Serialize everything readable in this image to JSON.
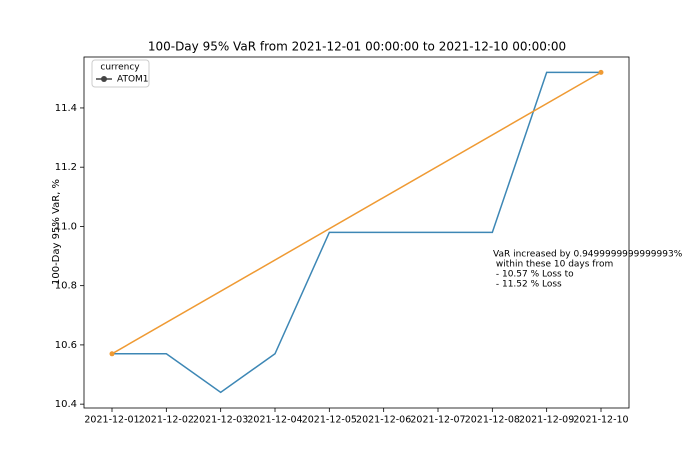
{
  "chart_data": {
    "type": "line",
    "title": "100-Day 95% VaR from 2021-12-01 00:00:00 to 2021-12-10 00:00:00",
    "y_label": "100-Day 95% VaR, %",
    "categories": [
      "2021-12-01",
      "2021-12-02",
      "2021-12-03",
      "2021-12-04",
      "2021-12-05",
      "2021-12-06",
      "2021-12-07",
      "2021-12-08",
      "2021-12-09",
      "2021-12-10"
    ],
    "series": [
      {
        "name": "ATOM1",
        "color": "#3d87b5",
        "values": [
          10.57,
          10.57,
          10.44,
          10.57,
          10.98,
          10.98,
          10.98,
          10.98,
          11.52,
          11.52
        ]
      }
    ],
    "trend": {
      "color": "#ef9a33",
      "x": [
        "2021-12-01",
        "2021-12-10"
      ],
      "values": [
        10.57,
        11.52
      ]
    },
    "ylim": [
      10.387,
      11.572
    ],
    "yticks": [
      10.4,
      10.6,
      10.8,
      {
        "value": 11,
        "label": "11.0"
      },
      11.2,
      11.4
    ],
    "legend": {
      "title": "currency",
      "position": "upper left",
      "marker_color": "#444444"
    },
    "annotation": [
      "VaR increased by 0.9499999999999993%",
      " within these 10 days from",
      " - 10.57 % Loss to",
      " - 11.52 % Loss"
    ]
  }
}
